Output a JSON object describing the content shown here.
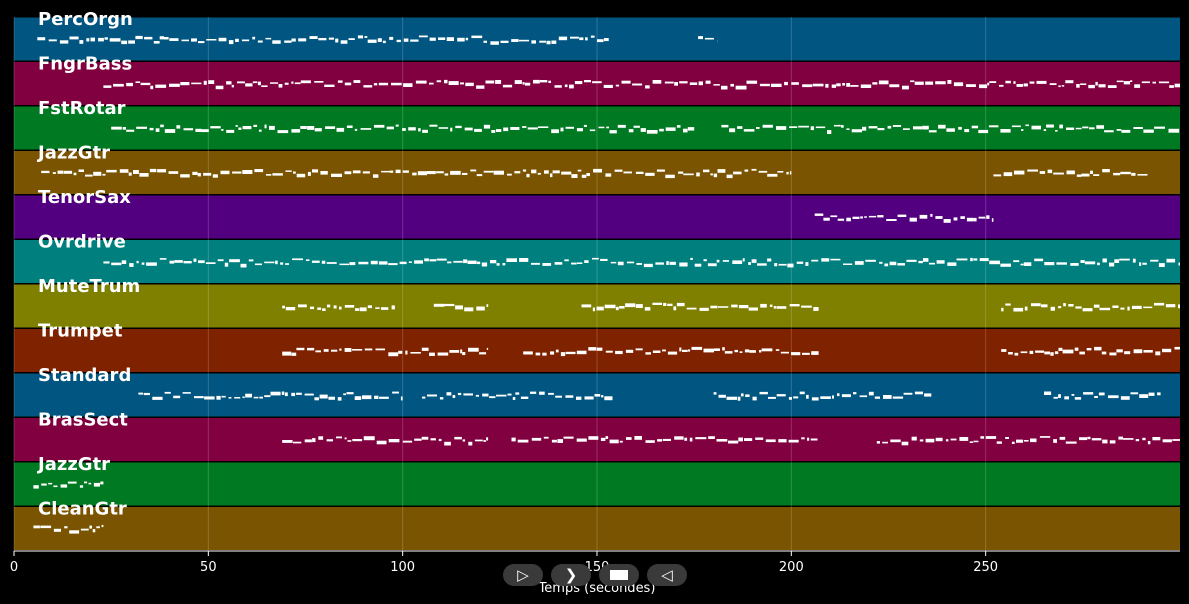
{
  "chart_data": {
    "type": "piano-roll",
    "xlabel": "Temps (secondes)",
    "xlim": [
      0,
      300
    ],
    "xticks": [
      0,
      50,
      100,
      150,
      200,
      250
    ],
    "grid": true,
    "tracks": [
      {
        "name": "PercOrgn",
        "color": "#005581",
        "segments": [
          [
            6,
            150
          ],
          [
            150,
            153
          ],
          [
            176,
            181
          ]
        ]
      },
      {
        "name": "FngrBass",
        "color": "#800040",
        "segments": [
          [
            23,
            300
          ]
        ]
      },
      {
        "name": "FstRotar",
        "color": "#007a22",
        "segments": [
          [
            25,
            175
          ],
          [
            182,
            300
          ]
        ]
      },
      {
        "name": "JazzGtr",
        "color": "#7a5400",
        "segments": [
          [
            7,
            159
          ],
          [
            160,
            200
          ],
          [
            252,
            292
          ]
        ]
      },
      {
        "name": "TenorSax",
        "color": "#520080",
        "segments": [
          [
            206,
            252
          ]
        ]
      },
      {
        "name": "Ovrdrive",
        "color": "#007f7f",
        "segments": [
          [
            23,
            300
          ]
        ]
      },
      {
        "name": "MuteTrum",
        "color": "#7f7f00",
        "segments": [
          [
            69,
            98
          ],
          [
            108,
            122
          ],
          [
            146,
            207
          ],
          [
            254,
            300
          ]
        ]
      },
      {
        "name": "Trumpet",
        "color": "#7f2200",
        "segments": [
          [
            69,
            122
          ],
          [
            131,
            207
          ],
          [
            254,
            300
          ]
        ]
      },
      {
        "name": "Standard",
        "color": "#005581",
        "segments": [
          [
            32,
            100
          ],
          [
            105,
            154
          ],
          [
            180,
            236
          ],
          [
            265,
            295
          ]
        ]
      },
      {
        "name": "BrasSect",
        "color": "#800040",
        "segments": [
          [
            69,
            122
          ],
          [
            128,
            207
          ],
          [
            222,
            300
          ]
        ]
      },
      {
        "name": "JazzGtr",
        "color": "#007a22",
        "segments": [
          [
            5,
            23
          ]
        ]
      },
      {
        "name": "CleanGtr",
        "color": "#7a5400",
        "segments": [
          [
            5,
            23
          ]
        ]
      }
    ]
  },
  "controls": {
    "play_icon": "play-outline-icon",
    "forward_icon": "forward-icon",
    "stop_icon": "stop-icon",
    "rewind_icon": "rewind-icon"
  }
}
